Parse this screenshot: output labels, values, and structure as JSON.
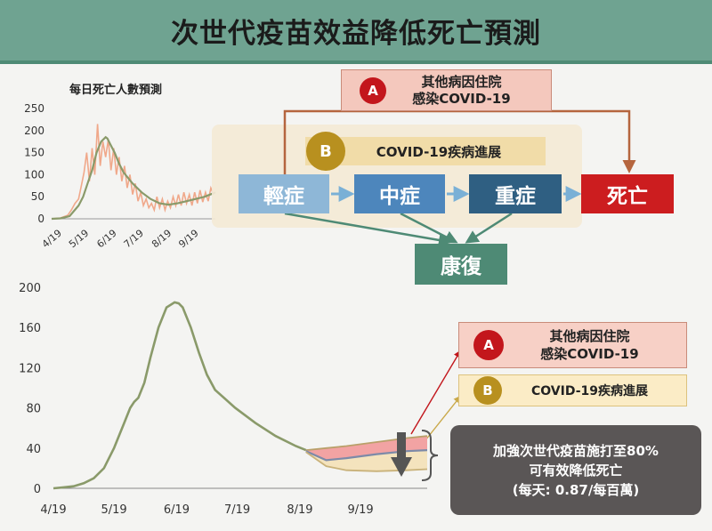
{
  "header": {
    "title": "次世代疫苗效益降低死亡預測"
  },
  "small_chart": {
    "title": "每日死亡人數預測"
  },
  "flow": {
    "a_badge": "A",
    "a_line1": "其他病因住院",
    "a_line2": "感染COVID-19",
    "b_badge": "B",
    "b_label": "COVID-19疾病進展",
    "mild": "輕症",
    "moderate": "中症",
    "severe": "重症",
    "death": "死亡",
    "recovery": "康復"
  },
  "legend": {
    "a_badge": "A",
    "a_line1": "其他病因住院",
    "a_line2": "感染COVID-19",
    "b_badge": "B",
    "b_label": "COVID-19疾病進展"
  },
  "note": {
    "line1": "加強次世代疫苗施打至80%",
    "line2": "可有效降低死亡",
    "line3": "(每天: 0.87/每百萬)"
  },
  "colors": {
    "mild": "#8eb7d7",
    "moderate": "#4d86bc",
    "severe": "#2f5f82",
    "death": "#cc1d1f",
    "recovery": "#4e8a75",
    "badge_a": "#c3161c",
    "badge_b": "#b8901f",
    "projection_line": "#8a9a6a",
    "observed_line": "#f0a88a"
  },
  "chart_data": [
    {
      "type": "line",
      "title": "每日死亡人數預測",
      "x_ticks": [
        "4/19",
        "5/19",
        "6/19",
        "7/19",
        "8/19",
        "9/19"
      ],
      "y_ticks": [
        0,
        50,
        100,
        150,
        200,
        250
      ],
      "ylim": [
        0,
        250
      ],
      "series": [
        {
          "x": [
            0,
            10,
            20,
            30,
            35,
            40,
            45,
            50,
            55,
            60,
            62,
            65,
            70,
            75,
            80,
            90,
            100,
            110,
            120,
            130,
            140,
            150,
            160,
            170,
            180,
            182
          ],
          "y": [
            0,
            1,
            6,
            30,
            50,
            80,
            110,
            150,
            175,
            185,
            182,
            170,
            150,
            125,
            105,
            80,
            60,
            45,
            35,
            32,
            35,
            40,
            45,
            50,
            58,
            60
          ]
        },
        {
          "x": [
            0,
            10,
            18,
            22,
            26,
            30,
            33,
            36,
            39,
            42,
            45,
            48,
            51,
            54,
            57,
            60,
            63,
            66,
            69,
            72,
            75,
            78,
            81,
            84,
            87,
            90,
            93,
            96,
            99,
            102,
            105,
            108,
            111,
            114,
            117,
            120,
            123,
            126,
            129,
            132,
            135,
            138,
            141,
            144,
            147,
            150,
            153,
            156,
            159,
            162,
            165,
            168,
            171,
            174,
            177,
            180
          ],
          "y": [
            0,
            2,
            8,
            20,
            35,
            45,
            75,
            105,
            150,
            85,
            160,
            100,
            215,
            120,
            175,
            140,
            180,
            110,
            160,
            100,
            140,
            85,
            120,
            70,
            100,
            55,
            80,
            40,
            60,
            30,
            45,
            25,
            35,
            20,
            50,
            25,
            45,
            20,
            40,
            25,
            50,
            30,
            55,
            30,
            60,
            35,
            55,
            30,
            60,
            35,
            65,
            38,
            60,
            40,
            70,
            55
          ]
        }
      ]
    },
    {
      "type": "line",
      "x_ticks": [
        "4/19",
        "5/19",
        "6/19",
        "7/19",
        "8/19",
        "9/19"
      ],
      "y_ticks": [
        0,
        40,
        80,
        120,
        160,
        200
      ],
      "ylim": [
        0,
        200
      ],
      "series": [
        {
          "x": [
            0,
            5,
            10,
            15,
            20,
            25,
            30,
            35,
            38,
            40,
            42,
            45,
            48,
            52,
            56,
            60,
            62,
            64,
            68,
            72,
            76,
            80,
            90,
            100,
            110,
            120,
            125
          ],
          "y": [
            0,
            1,
            2,
            5,
            10,
            20,
            40,
            65,
            80,
            86,
            90,
            105,
            130,
            160,
            180,
            185,
            184,
            180,
            160,
            135,
            113,
            98,
            80,
            65,
            52,
            42,
            38
          ]
        },
        {
          "x": [
            125,
            135,
            145,
            160,
            175,
            185
          ],
          "y": [
            38,
            40,
            42,
            46,
            50,
            52
          ]
        },
        {
          "x": [
            125,
            135,
            145,
            160,
            175,
            185
          ],
          "y": [
            37,
            28,
            30,
            34,
            37,
            38
          ]
        },
        {
          "x": [
            125,
            135,
            145,
            160,
            175,
            185
          ],
          "y": [
            36,
            22,
            18,
            17,
            18,
            19
          ]
        }
      ]
    }
  ]
}
